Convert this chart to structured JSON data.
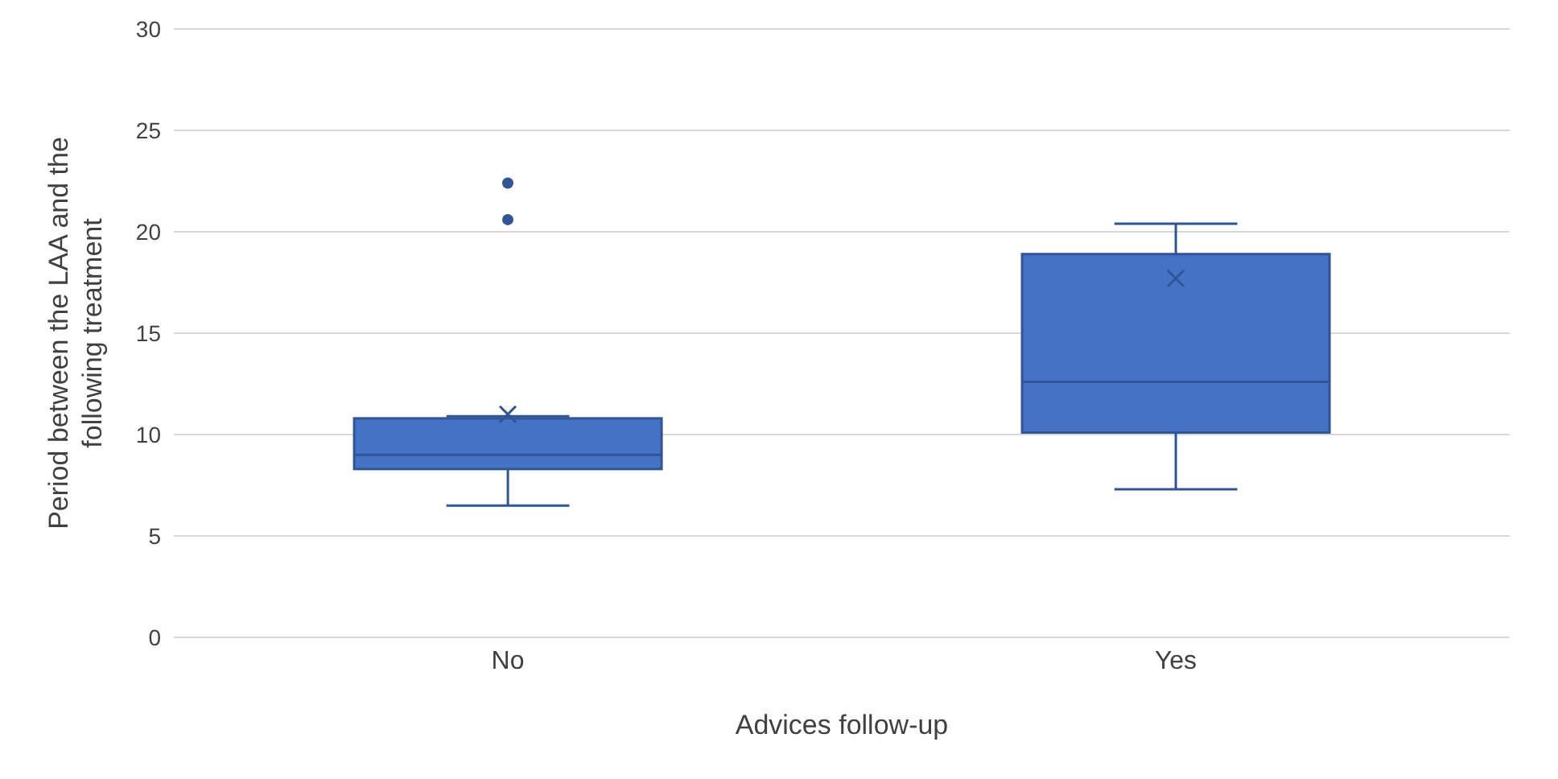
{
  "chart_data": {
    "type": "box",
    "xlabel": "Advices follow-up",
    "ylabel": "Period between the LAA and the following treatment",
    "categories": [
      "No",
      "Yes"
    ],
    "color": "#4472c4",
    "ylim": [
      0,
      30
    ],
    "yticks": [
      0,
      5,
      10,
      15,
      20,
      25,
      30
    ],
    "grid": "y",
    "legend": false,
    "boxes": [
      {
        "low": 6.5,
        "q1": 8.3,
        "median": 9.0,
        "q3": 10.8,
        "high": 10.9,
        "mean": 11.0,
        "outliers": [
          20.6,
          22.4
        ]
      },
      {
        "low": 7.3,
        "q1": 10.1,
        "median": 12.6,
        "q3": 18.9,
        "high": 20.4,
        "mean": 17.7
      }
    ]
  }
}
